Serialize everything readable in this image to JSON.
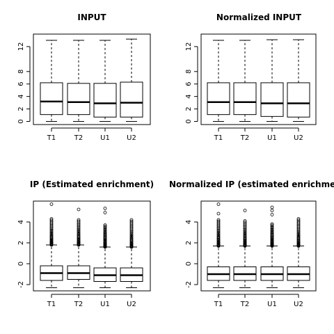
{
  "chart_data": [
    {
      "type": "boxplot",
      "title": "INPUT",
      "categories": [
        "T1",
        "T2",
        "U1",
        "U2"
      ],
      "ylim": [
        -0.5,
        14
      ],
      "yticks": [
        0,
        2,
        4,
        6,
        8,
        12
      ],
      "boxes": [
        {
          "name": "T1",
          "whisker_low": 0.0,
          "q1": 1.1,
          "median": 3.2,
          "q3": 6.2,
          "whisker_high": 13.0,
          "outliers": []
        },
        {
          "name": "T2",
          "whisker_low": 0.0,
          "q1": 1.1,
          "median": 3.1,
          "q3": 6.1,
          "whisker_high": 13.0,
          "outliers": []
        },
        {
          "name": "U1",
          "whisker_low": 0.0,
          "q1": 0.7,
          "median": 2.9,
          "q3": 6.1,
          "whisker_high": 13.0,
          "outliers": []
        },
        {
          "name": "U2",
          "whisker_low": 0.0,
          "q1": 0.7,
          "median": 3.0,
          "q3": 6.3,
          "whisker_high": 13.2,
          "outliers": []
        }
      ]
    },
    {
      "type": "boxplot",
      "title": "Normalized INPUT",
      "categories": [
        "T1",
        "T2",
        "U1",
        "U2"
      ],
      "ylim": [
        -0.5,
        14
      ],
      "yticks": [
        0,
        2,
        4,
        6,
        8,
        12
      ],
      "boxes": [
        {
          "name": "T1",
          "whisker_low": 0.0,
          "q1": 1.1,
          "median": 3.1,
          "q3": 6.2,
          "whisker_high": 13.0,
          "outliers": []
        },
        {
          "name": "T2",
          "whisker_low": 0.0,
          "q1": 1.1,
          "median": 3.1,
          "q3": 6.2,
          "whisker_high": 13.0,
          "outliers": []
        },
        {
          "name": "U1",
          "whisker_low": 0.0,
          "q1": 0.8,
          "median": 2.9,
          "q3": 6.2,
          "whisker_high": 13.1,
          "outliers": []
        },
        {
          "name": "U2",
          "whisker_low": 0.0,
          "q1": 0.7,
          "median": 2.9,
          "q3": 6.2,
          "whisker_high": 13.1,
          "outliers": []
        }
      ]
    },
    {
      "type": "boxplot",
      "title": "IP (Estimated enrichment)",
      "categories": [
        "T1",
        "T2",
        "U1",
        "U2"
      ],
      "ylim": [
        -2.6,
        6.0
      ],
      "yticks": [
        -2,
        0,
        2,
        4
      ],
      "boxes": [
        {
          "name": "T1",
          "whisker_low": -2.3,
          "q1": -1.6,
          "median": -0.9,
          "q3": -0.2,
          "whisker_high": 1.8,
          "outlier_range": [
            1.8,
            4.3
          ],
          "outliers": [
            5.7
          ]
        },
        {
          "name": "T2",
          "whisker_low": -2.3,
          "q1": -1.5,
          "median": -0.9,
          "q3": -0.2,
          "whisker_high": 1.8,
          "outlier_range": [
            1.8,
            4.2
          ],
          "outliers": [
            5.2
          ]
        },
        {
          "name": "U1",
          "whisker_low": -2.3,
          "q1": -1.7,
          "median": -1.1,
          "q3": -0.4,
          "whisker_high": 1.6,
          "outlier_range": [
            1.6,
            3.7
          ],
          "outliers": [
            4.9,
            5.3
          ]
        },
        {
          "name": "U2",
          "whisker_low": -2.3,
          "q1": -1.7,
          "median": -1.1,
          "q3": -0.4,
          "whisker_high": 1.6,
          "outlier_range": [
            1.6,
            4.2
          ],
          "outliers": []
        }
      ]
    },
    {
      "type": "boxplot",
      "title": "Normalized IP (estimated enrichme",
      "categories": [
        "T1",
        "T2",
        "U1",
        "U2"
      ],
      "ylim": [
        -2.6,
        6.0
      ],
      "yticks": [
        -2,
        0,
        2,
        4
      ],
      "boxes": [
        {
          "name": "T1",
          "whisker_low": -2.3,
          "q1": -1.6,
          "median": -1.0,
          "q3": -0.3,
          "whisker_high": 1.7,
          "outlier_range": [
            1.7,
            4.2
          ],
          "outliers": [
            4.8,
            5.7
          ]
        },
        {
          "name": "T2",
          "whisker_low": -2.3,
          "q1": -1.6,
          "median": -1.0,
          "q3": -0.3,
          "whisker_high": 1.7,
          "outlier_range": [
            1.7,
            4.1
          ],
          "outliers": [
            5.1
          ]
        },
        {
          "name": "U1",
          "whisker_low": -2.3,
          "q1": -1.6,
          "median": -1.0,
          "q3": -0.3,
          "whisker_high": 1.7,
          "outlier_range": [
            1.7,
            3.8
          ],
          "outliers": [
            4.7,
            5.1,
            5.4
          ]
        },
        {
          "name": "U2",
          "whisker_low": -2.3,
          "q1": -1.6,
          "median": -1.0,
          "q3": -0.3,
          "whisker_high": 1.7,
          "outlier_range": [
            1.7,
            4.3
          ],
          "outliers": []
        }
      ]
    }
  ]
}
